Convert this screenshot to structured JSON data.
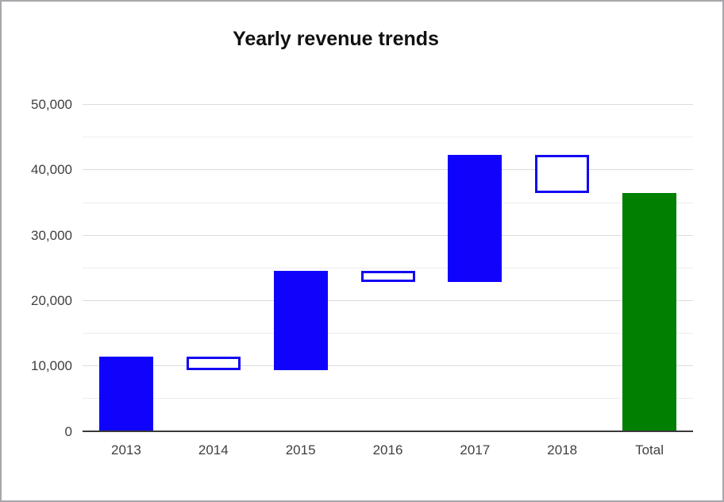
{
  "window": {
    "background": "#ffffff",
    "frame_border_color": "#a7a7ab"
  },
  "chart_data": {
    "type": "bar",
    "subtype": "waterfall",
    "title": "Yearly revenue trends",
    "xlabel": "",
    "ylabel": "",
    "legend": "none",
    "grid": true,
    "categories": [
      "2013",
      "2014",
      "2015",
      "2016",
      "2017",
      "2018",
      "Total"
    ],
    "columns": [
      {
        "label": "2013",
        "start": 0,
        "end": 11400,
        "change": 11400,
        "style": "increase"
      },
      {
        "label": "2014",
        "start": 11400,
        "end": 9400,
        "change": -2000,
        "style": "decrease"
      },
      {
        "label": "2015",
        "start": 9400,
        "end": 24600,
        "change": 15200,
        "style": "increase"
      },
      {
        "label": "2016",
        "start": 24600,
        "end": 22900,
        "change": -1700,
        "style": "decrease"
      },
      {
        "label": "2017",
        "start": 22900,
        "end": 42300,
        "change": 19400,
        "style": "increase"
      },
      {
        "label": "2018",
        "start": 42300,
        "end": 36500,
        "change": -5800,
        "style": "decrease"
      },
      {
        "label": "Total",
        "start": 0,
        "end": 36500,
        "change": 36500,
        "style": "total"
      }
    ],
    "y_axis": {
      "min": 0,
      "max": 50000,
      "major_step": 10000,
      "minor_step": 5000,
      "tick_labels": [
        "0",
        "10,000",
        "20,000",
        "30,000",
        "40,000",
        "50,000"
      ]
    }
  },
  "colors": {
    "increase_fill": "#1003fb",
    "increase_border": "rgba(16,3,251,0.42)",
    "decrease_fill": "#ffffff",
    "decrease_border": "#1307f2",
    "total_fill": "#007f01",
    "total_border": "rgba(0,127,1,0.42)",
    "gridline_major": "#dcdcdc",
    "gridline_minor": "#ededed",
    "baseline": "#3a3a3a",
    "tick_text": "#404040"
  }
}
